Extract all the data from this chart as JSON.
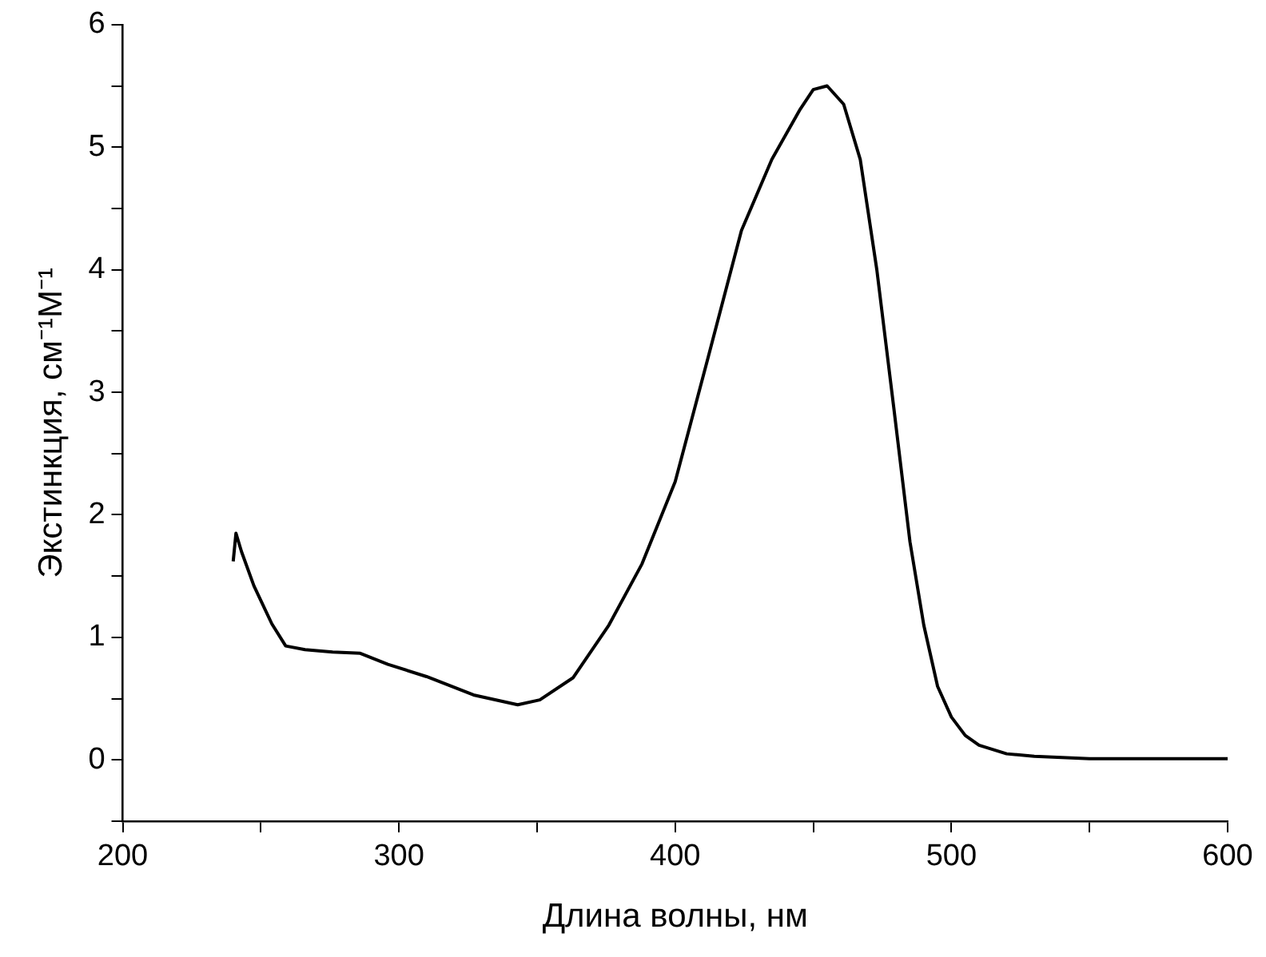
{
  "chart_data": {
    "type": "line",
    "xlabel": "Длина волны, нм",
    "ylabel": "Экстинкция, см⁻¹М⁻¹",
    "x": [
      240,
      241,
      243,
      247.5,
      254,
      259,
      266,
      276,
      286,
      296,
      310,
      327,
      343,
      351,
      363,
      376,
      388,
      400,
      412,
      424,
      435,
      445,
      450,
      455,
      461,
      467,
      473,
      479,
      485,
      490,
      495,
      500,
      505,
      510,
      520,
      530,
      550,
      600
    ],
    "series": [
      {
        "color": "#000000",
        "values": [
          1.62,
          1.85,
          1.7,
          1.42,
          1.11,
          0.93,
          0.9,
          0.88,
          0.87,
          0.78,
          0.68,
          0.53,
          0.45,
          0.49,
          0.67,
          1.1,
          1.6,
          2.27,
          3.29,
          4.32,
          4.9,
          5.3,
          5.47,
          5.5,
          5.35,
          4.9,
          4.0,
          2.9,
          1.78,
          1.1,
          0.6,
          0.35,
          0.2,
          0.12,
          0.05,
          0.03,
          0.01,
          0.01
        ]
      }
    ],
    "xlim": [
      200,
      600
    ],
    "ylim": [
      -0.5,
      6
    ],
    "xticks": [
      200,
      {
        "value": 250,
        "label": null
      },
      300,
      {
        "value": 350,
        "label": null
      },
      400,
      {
        "value": 450,
        "label": null
      },
      500,
      {
        "value": 550,
        "label": null
      },
      600
    ],
    "yticks": [
      {
        "value": -0.5,
        "label": null
      },
      0,
      {
        "value": 0.5,
        "label": null
      },
      1,
      {
        "value": 1.5,
        "label": null
      },
      2,
      {
        "value": 2.5,
        "label": null
      },
      3,
      {
        "value": 3.5,
        "label": null
      },
      4,
      {
        "value": 4.5,
        "label": null
      },
      5,
      {
        "value": 5.5,
        "label": null
      },
      6
    ],
    "grid": false,
    "legend": false,
    "marker": "none",
    "line_style": "solid"
  }
}
